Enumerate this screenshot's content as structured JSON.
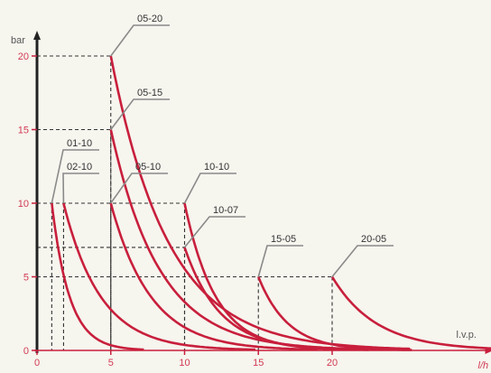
{
  "chart_data": {
    "type": "line",
    "ylabel": "bar",
    "xlabel": "l/h",
    "xlim": [
      0,
      30
    ],
    "ylim": [
      0,
      20
    ],
    "x_ticks": [
      0,
      5,
      10,
      15,
      20
    ],
    "y_ticks": [
      0,
      5,
      10,
      15,
      20
    ],
    "baseline_label": "l.v.p.",
    "colors": {
      "curve": "#c81f3c",
      "grid": "#333333",
      "label_line": "#8a8a8a",
      "axis_y": "#222222",
      "axis_x": "#c81f3c",
      "label_text": "#333333"
    },
    "series": [
      {
        "name": "05-20",
        "start_x": 5,
        "start_y": 20,
        "decay": 3.9
      },
      {
        "name": "05-15",
        "start_x": 5,
        "start_y": 15,
        "decay": 3.3
      },
      {
        "name": "05-10",
        "start_x": 5,
        "start_y": 10,
        "decay": 2.7
      },
      {
        "name": "01-10",
        "start_x": 1,
        "start_y": 10,
        "decay": 1.2
      },
      {
        "name": "02-10",
        "start_x": 1.8,
        "start_y": 10,
        "decay": 2.5
      },
      {
        "name": "10-10",
        "start_x": 10,
        "start_y": 10,
        "decay": 2.1
      },
      {
        "name": "10-07",
        "start_x": 10,
        "start_y": 7,
        "decay": 2.4
      },
      {
        "name": "15-05",
        "start_x": 15,
        "start_y": 5,
        "decay": 2.0
      },
      {
        "name": "20-05",
        "start_x": 20,
        "start_y": 5,
        "decay": 3.0
      }
    ]
  }
}
